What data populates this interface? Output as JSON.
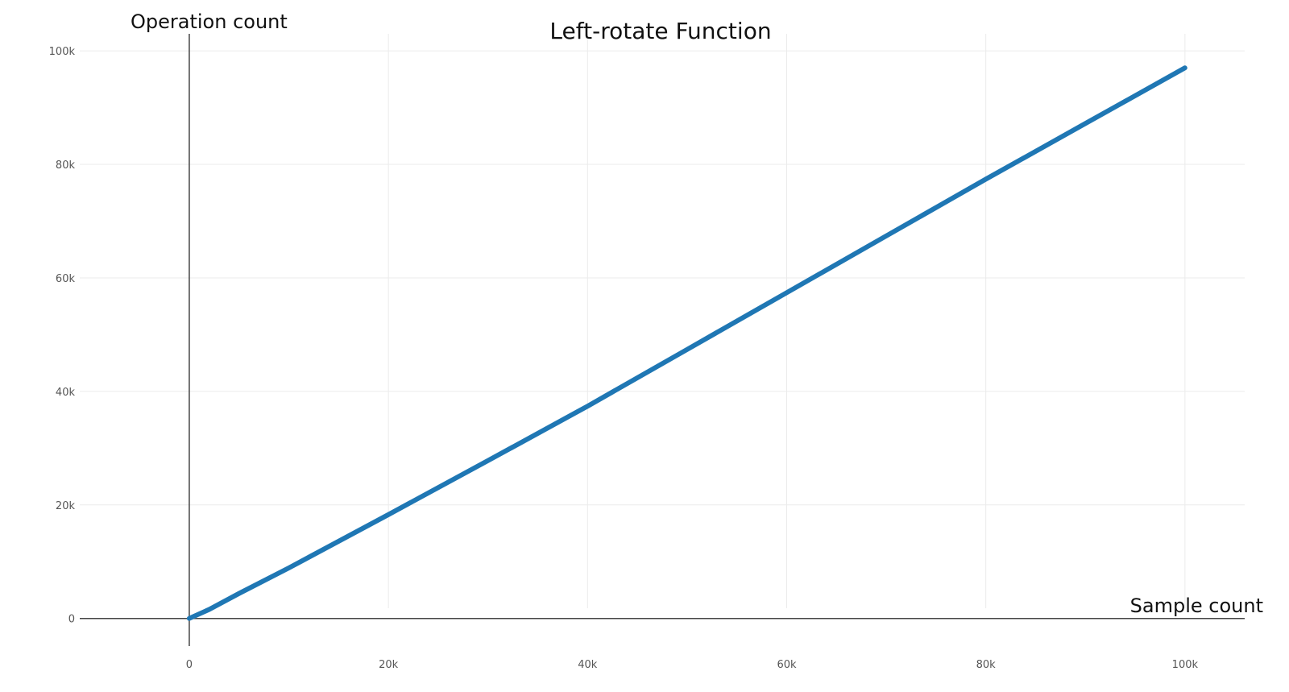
{
  "chart_data": {
    "type": "line",
    "title": "Left-rotate Function",
    "xlabel": "Sample count",
    "ylabel": "Operation count",
    "xlim": [
      -11000,
      106000
    ],
    "ylim": [
      -6000,
      103000
    ],
    "x_ticks": [
      0,
      20000,
      40000,
      60000,
      80000,
      100000
    ],
    "x_tick_labels": [
      "0",
      "20k",
      "40k",
      "60k",
      "80k",
      "100k"
    ],
    "y_ticks": [
      0,
      20000,
      40000,
      60000,
      80000,
      100000
    ],
    "y_tick_labels": [
      "0",
      "20k",
      "40k",
      "60k",
      "80k",
      "100k"
    ],
    "grid": true,
    "legend": false,
    "series": [
      {
        "color": "#1f77b4",
        "x": [
          0,
          2000,
          5000,
          10000,
          20000,
          30000,
          40000,
          50000,
          60000,
          70000,
          80000,
          90000,
          100000
        ],
        "y": [
          0,
          1600,
          4400,
          8900,
          18300,
          27800,
          37400,
          47400,
          57400,
          67400,
          77400,
          87200,
          97000
        ]
      }
    ]
  }
}
